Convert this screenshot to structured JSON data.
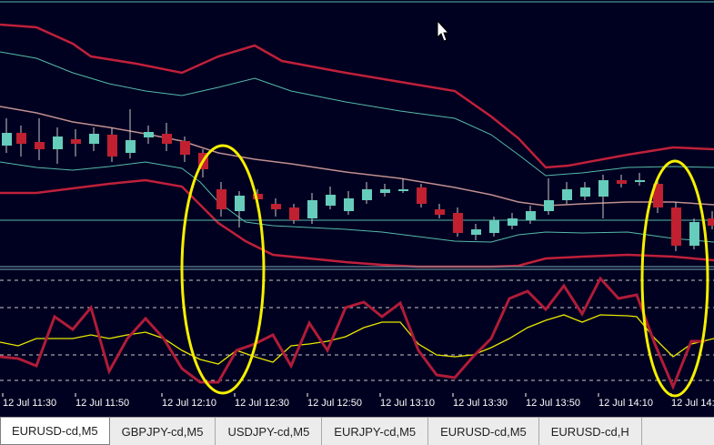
{
  "window": {
    "symbol": "EURUSD-cd",
    "timeframe": "M5"
  },
  "tabs": [
    {
      "label": "EURUSD-cd,M5",
      "active": true
    },
    {
      "label": "GBPJPY-cd,M5",
      "active": false
    },
    {
      "label": "USDJPY-cd,M5",
      "active": false
    },
    {
      "label": "EURJPY-cd,M5",
      "active": false
    },
    {
      "label": "EURUSD-cd,M5",
      "active": false
    },
    {
      "label": "EURUSD-cd,H",
      "active": false
    }
  ],
  "time_axis": {
    "labels": [
      "12 Jul 11:30",
      "12 Jul 11:50",
      "12 Jul 12:10",
      "12 Jul 12:30",
      "12 Jul 12:50",
      "12 Jul 13:10",
      "12 Jul 13:30",
      "12 Jul 13:50",
      "12 Jul 14:10",
      "12 Jul 14:"
    ]
  },
  "colors": {
    "background": "#000020",
    "bull_candle": "#66ccbb",
    "bear_candle": "#c02030",
    "outer_band": "#c0203a",
    "inner_band": "#55bbaa",
    "middle_line": "#c09090",
    "oscillator": "#b01c38",
    "signal": "#e8e800",
    "highlight": "#f5f000",
    "grid": "#c8c8c8"
  },
  "icons": {
    "cursor": "mouse-pointer-icon"
  },
  "annotations": [
    {
      "type": "ellipse",
      "color": "#f5f000",
      "label": "highlight-ellipse-1"
    },
    {
      "type": "ellipse",
      "color": "#f5f000",
      "label": "highlight-ellipse-2"
    }
  ]
}
